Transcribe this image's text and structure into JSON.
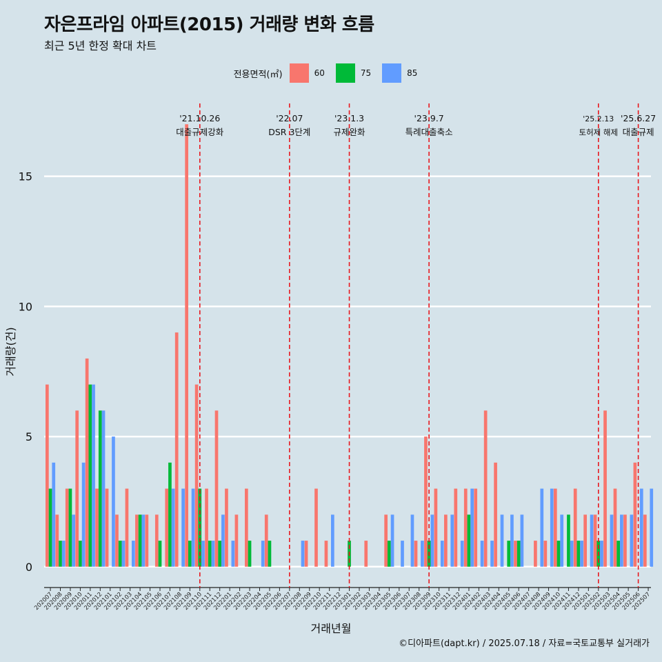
{
  "title": "자은프라임 아파트(2015) 거래량 변화 흐름",
  "subtitle": "최근 5년 한정 확대 차트",
  "caption": "©디아파트(dapt.kr) / 2025.07.18 / 자료=국토교통부 실거래가",
  "colors": {
    "background": "#d5e3ea",
    "s60": "#f8766d",
    "s75": "#00ba38",
    "s85": "#619cff",
    "event_line": "#e8181e"
  },
  "chart_data": {
    "type": "bar",
    "xlabel": "거래년월",
    "ylabel": "거래량(건)",
    "ylim": [
      -0.8,
      17.8
    ],
    "yticks": [
      0,
      5,
      10,
      15
    ],
    "legend": {
      "title": "전용면적(㎡)",
      "position": "top"
    },
    "categories": [
      "202007",
      "202008",
      "202009",
      "202010",
      "202011",
      "202012",
      "202101",
      "202102",
      "202103",
      "202104",
      "202105",
      "202106",
      "202107",
      "202108",
      "202109",
      "202110",
      "202111",
      "202112",
      "202201",
      "202202",
      "202203",
      "202204",
      "202205",
      "202206",
      "202207",
      "202208",
      "202209",
      "202210",
      "202211",
      "202212",
      "202301",
      "202302",
      "202303",
      "202304",
      "202305",
      "202306",
      "202307",
      "202308",
      "202309",
      "202310",
      "202311",
      "202312",
      "202401",
      "202402",
      "202403",
      "202404",
      "202405",
      "202406",
      "202407",
      "202408",
      "202409",
      "202410",
      "202411",
      "202412",
      "202501",
      "202502",
      "202503",
      "202504",
      "202505",
      "202506",
      "202507"
    ],
    "series": [
      {
        "name": "60",
        "color": "#f8766d",
        "values": [
          7,
          2,
          3,
          6,
          8,
          3,
          3,
          2,
          3,
          2,
          2,
          2,
          3,
          9,
          17,
          7,
          3,
          6,
          3,
          2,
          3,
          0,
          2,
          0,
          0,
          0,
          1,
          3,
          1,
          0,
          0,
          0,
          1,
          0,
          2,
          0,
          0,
          1,
          5,
          3,
          2,
          3,
          3,
          3,
          6,
          4,
          0,
          1,
          0,
          1,
          1,
          3,
          0,
          3,
          2,
          2,
          6,
          3,
          2,
          4,
          2
        ]
      },
      {
        "name": "75",
        "color": "#00ba38",
        "values": [
          3,
          1,
          3,
          1,
          7,
          6,
          0,
          1,
          0,
          2,
          0,
          1,
          4,
          0,
          1,
          3,
          1,
          1,
          0,
          0,
          1,
          0,
          1,
          0,
          0,
          0,
          0,
          0,
          0,
          0,
          1,
          0,
          0,
          0,
          1,
          0,
          0,
          0,
          1,
          0,
          0,
          0,
          2,
          0,
          0,
          0,
          1,
          1,
          0,
          0,
          0,
          1,
          2,
          1,
          0,
          1,
          0,
          1,
          0,
          0,
          0
        ]
      },
      {
        "name": "85",
        "color": "#619cff",
        "values": [
          4,
          1,
          2,
          4,
          7,
          6,
          5,
          1,
          1,
          2,
          0,
          0,
          3,
          3,
          3,
          1,
          1,
          2,
          1,
          0,
          0,
          1,
          0,
          0,
          0,
          1,
          0,
          0,
          2,
          0,
          0,
          0,
          0,
          0,
          2,
          1,
          2,
          1,
          2,
          1,
          2,
          1,
          3,
          1,
          1,
          2,
          2,
          2,
          0,
          3,
          3,
          2,
          1,
          1,
          2,
          1,
          2,
          2,
          2,
          3,
          3
        ]
      }
    ],
    "events": [
      {
        "category": "202110",
        "date": "'21.10.26",
        "label": "대출규제강화"
      },
      {
        "category": "202207",
        "date": "'22.07",
        "label": "DSR 3단계"
      },
      {
        "category": "202301",
        "date": "'23.1.3",
        "label": "규제완화"
      },
      {
        "category": "202309",
        "date": "'23.9.7",
        "label": "특례대출축소"
      },
      {
        "category": "202502",
        "date": "'25.2.13",
        "label": "토허제 해제"
      },
      {
        "category": "202506",
        "date": "'25.6.27",
        "label": "대출규제"
      }
    ]
  }
}
